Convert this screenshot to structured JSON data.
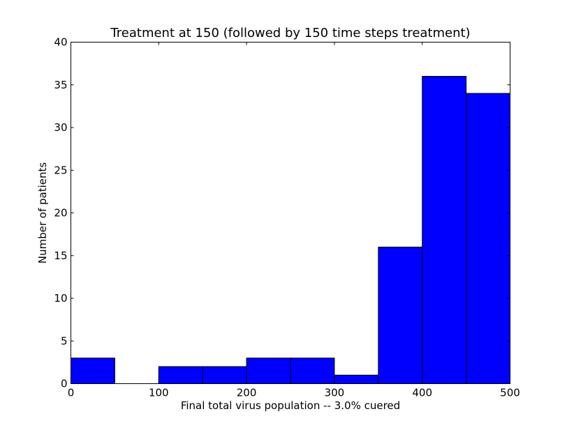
{
  "chart_data": {
    "type": "bar",
    "title": "Treatment at 150 (followed by 150 time steps treatment)",
    "xlabel": "Final total virus population -- 3.0% cuered",
    "ylabel": "Number of patients",
    "xlim": [
      0,
      500
    ],
    "ylim": [
      0,
      40
    ],
    "x_ticks": [
      0,
      100,
      200,
      300,
      400,
      500
    ],
    "y_ticks": [
      0,
      5,
      10,
      15,
      20,
      25,
      30,
      35,
      40
    ],
    "bin_edges": [
      0,
      50,
      100,
      150,
      200,
      250,
      300,
      350,
      400,
      450,
      500
    ],
    "values": [
      3,
      0,
      2,
      2,
      3,
      3,
      1,
      16,
      36,
      34
    ],
    "bar_color": "#0000ff",
    "edge_color": "#000000",
    "grid": false,
    "legend": "none"
  }
}
